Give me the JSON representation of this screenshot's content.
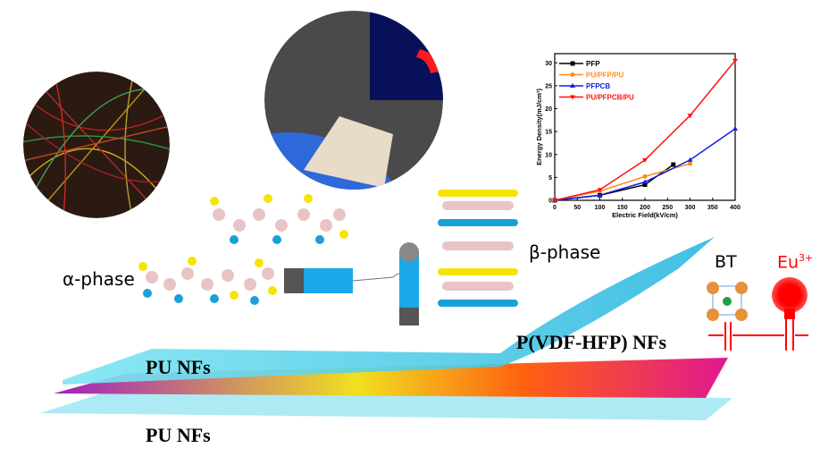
{
  "labels": {
    "alpha_phase": "α-phase",
    "beta_phase": "β-phase",
    "bt": "BT",
    "eu": "Eu",
    "eu_sup": "3+",
    "pu_nfs_top": "PU NFs",
    "pvdf_nfs": "P(VDF-HFP) NFs",
    "pu_nfs_bottom": "PU NFs"
  },
  "colors": {
    "eu": "#ff0000",
    "pu_sheet": "#5fd8e8",
    "pvdf_sheet": "#e0209a",
    "molecule_carbon": "#e8c4c4",
    "molecule_f": "#f5e400",
    "molecule_h": "#1aa0d8"
  },
  "chart_data": {
    "type": "line",
    "xlabel": "Electric Field(kV/cm)",
    "ylabel": "Energy Density(mJ/cm³)",
    "xlim": [
      0,
      400
    ],
    "ylim": [
      0,
      32
    ],
    "xticks": [
      0,
      50,
      100,
      150,
      200,
      250,
      300,
      350,
      400
    ],
    "yticks": [
      0,
      5,
      10,
      15,
      20,
      25,
      30
    ],
    "legend_position": "top-left",
    "grid": false,
    "series": [
      {
        "name": "PFP",
        "color": "#000000",
        "marker": "square",
        "x": [
          0,
          100,
          200,
          263
        ],
        "y": [
          0,
          1.1,
          3.4,
          7.8
        ]
      },
      {
        "name": "PU/PFP/PU",
        "color": "#ff8c1a",
        "marker": "circle",
        "x": [
          0,
          100,
          200,
          300
        ],
        "y": [
          0,
          2.0,
          5.2,
          8.0
        ]
      },
      {
        "name": "PFPCB",
        "color": "#1020e0",
        "marker": "triangle-up",
        "x": [
          0,
          100,
          200,
          300,
          400
        ],
        "y": [
          0,
          1.1,
          4.0,
          8.8,
          15.6
        ]
      },
      {
        "name": "PU/PFPCB/PU",
        "color": "#ff1010",
        "marker": "triangle-down",
        "x": [
          0,
          100,
          200,
          300,
          400
        ],
        "y": [
          0,
          2.3,
          8.8,
          18.5,
          30.5
        ]
      }
    ]
  }
}
